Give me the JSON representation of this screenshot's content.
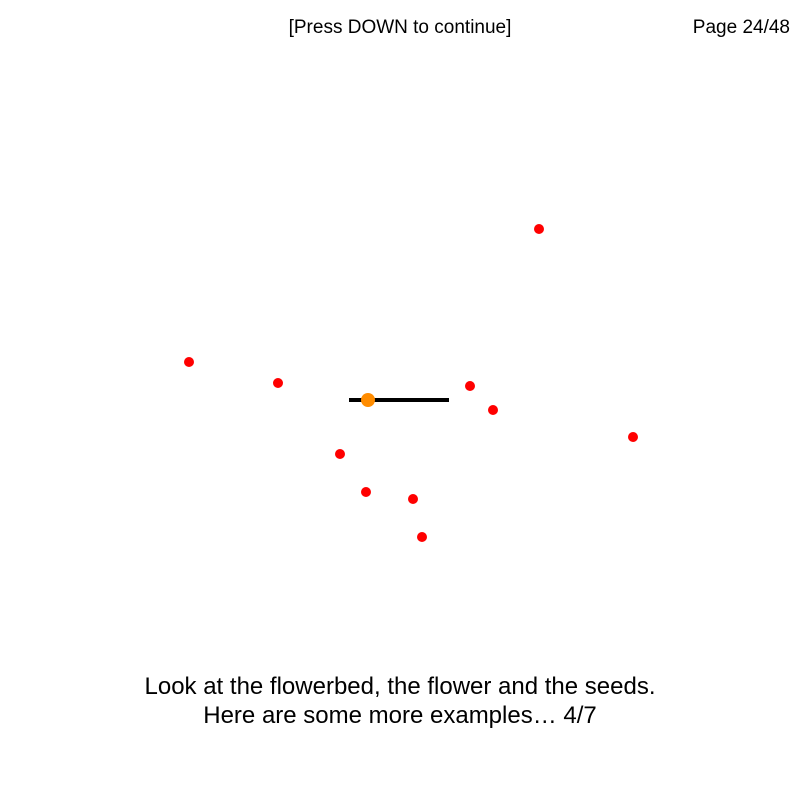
{
  "header": {
    "prompt": "[Press DOWN to continue]",
    "page_indicator": "Page 24/48"
  },
  "instructions": {
    "line1": "Look at the flowerbed, the flower and the seeds.",
    "line2": "Here are some more examples… 4/7"
  },
  "colors": {
    "background": "#ffffff",
    "seed": "#ff0000",
    "flower": "#ff8c00",
    "flowerbed": "#000000"
  }
}
